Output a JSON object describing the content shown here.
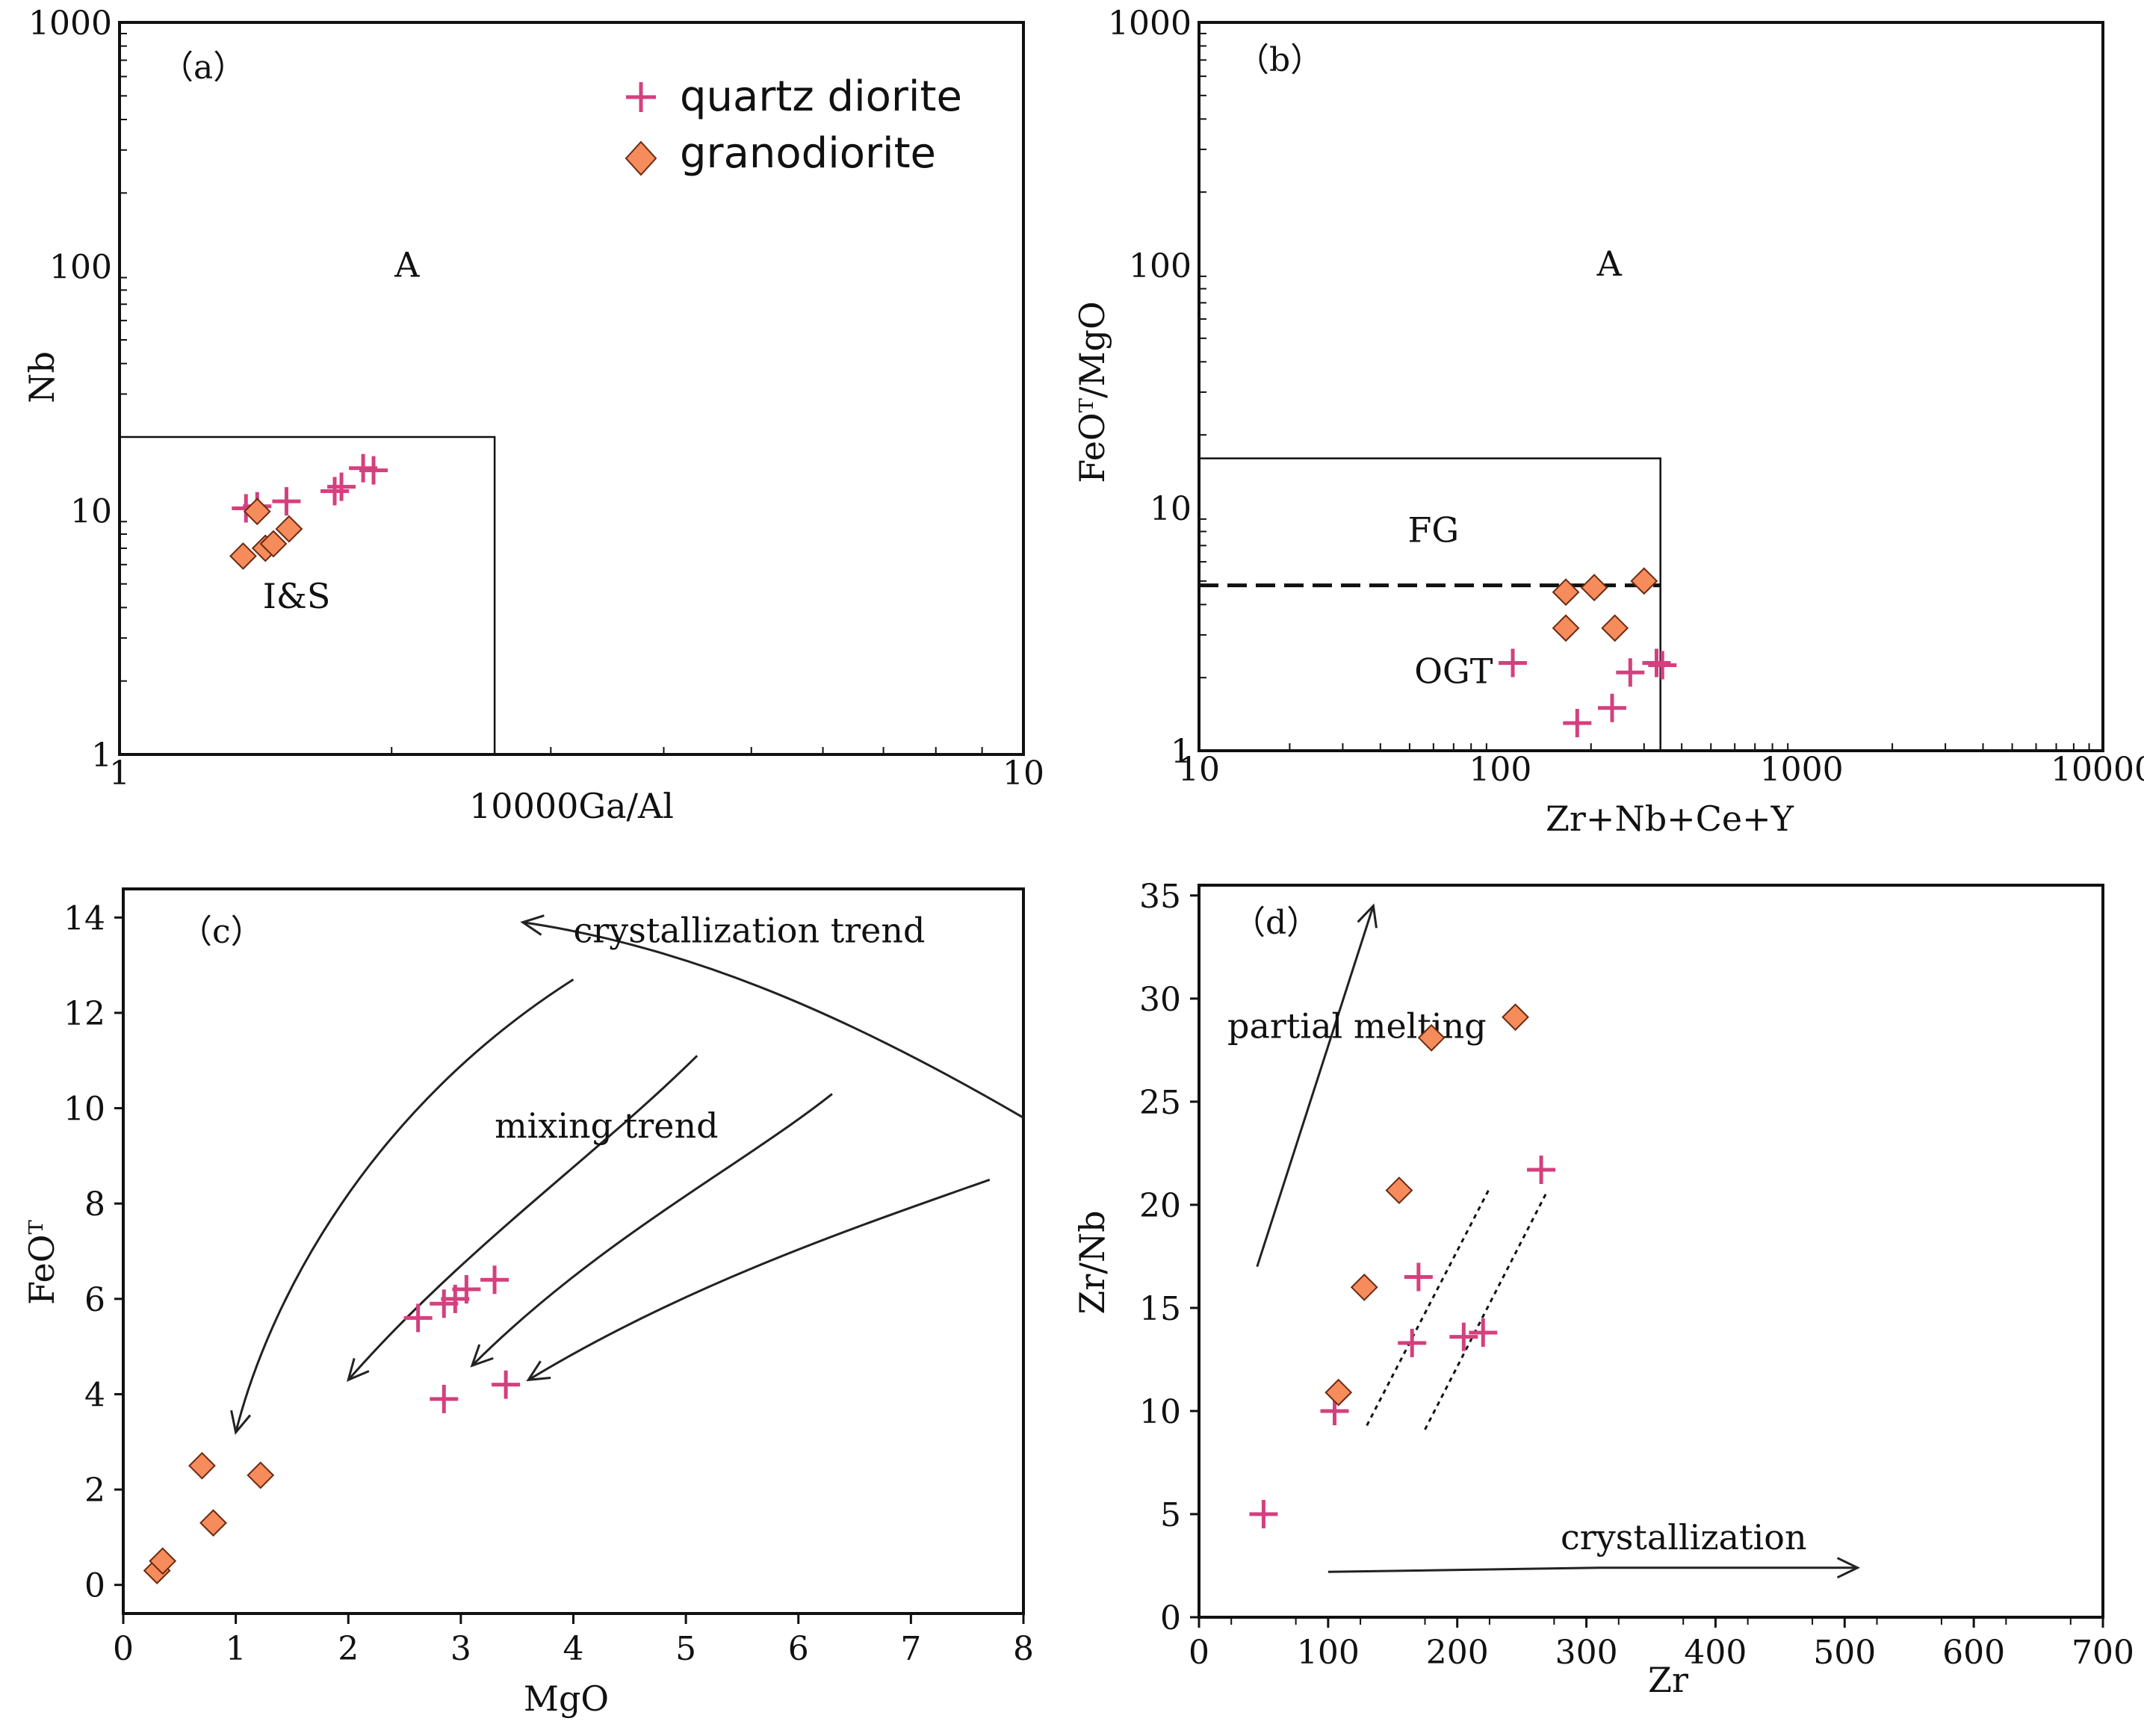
{
  "legend": {
    "items": [
      {
        "label": "quartz diorite",
        "marker": "plus",
        "color": "#d4407e"
      },
      {
        "label": "granodiorite",
        "marker": "diamond",
        "color": "#f68b5c"
      }
    ]
  },
  "chart_data": [
    {
      "panel_label": "（a）",
      "type": "scatter",
      "xlabel": "10000Ga/Al",
      "ylabel": "Nb",
      "xscale": "log",
      "yscale": "log",
      "xlim": [
        1,
        10
      ],
      "ylim": [
        1,
        1000
      ],
      "x_ticks": [
        {
          "v": 1,
          "label": "1"
        },
        {
          "v": 10,
          "label": "10"
        }
      ],
      "y_ticks": [
        {
          "v": 1,
          "label": "1"
        },
        {
          "v": 10,
          "label": "10"
        },
        {
          "v": 100,
          "label": "100"
        },
        {
          "v": 1000,
          "label": "1000"
        }
      ],
      "regions": [
        {
          "label": "A",
          "x": 2.08,
          "y": 100
        },
        {
          "label": "I&S",
          "x": 1.57,
          "y": 4.4
        }
      ],
      "boundaries": [
        {
          "style": "solid",
          "points": [
            [
              1,
              20
            ],
            [
              2.6,
              20
            ],
            [
              2.6,
              1
            ]
          ]
        }
      ],
      "series": [
        {
          "name": "quartz diorite",
          "marker": "plus",
          "points": [
            [
              1.38,
              10.2
            ],
            [
              1.42,
              10.4
            ],
            [
              1.53,
              10.9
            ],
            [
              1.73,
              12.0
            ],
            [
              1.76,
              12.5
            ],
            [
              1.86,
              14.9
            ],
            [
              1.91,
              14.6
            ]
          ]
        },
        {
          "name": "granodiorite",
          "marker": "diamond",
          "points": [
            [
              1.37,
              6.5
            ],
            [
              1.42,
              9.9
            ],
            [
              1.45,
              7.0
            ],
            [
              1.48,
              7.3
            ],
            [
              1.54,
              8.4
            ]
          ]
        }
      ]
    },
    {
      "panel_label": "（b）",
      "type": "scatter",
      "xlabel": "Zr+Nb+Ce+Y",
      "ylabel": "FeOᵀ/MgO",
      "xscale": "log",
      "yscale": "log",
      "xlim": [
        10,
        10000
      ],
      "ylim": [
        1,
        1000
      ],
      "x_ticks": [
        {
          "v": 10,
          "label": "10"
        },
        {
          "v": 100,
          "label": "100"
        },
        {
          "v": 1000,
          "label": "1000"
        },
        {
          "v": 10000,
          "label": "10000"
        }
      ],
      "y_ticks": [
        {
          "v": 1,
          "label": "1"
        },
        {
          "v": 10,
          "label": "10"
        },
        {
          "v": 100,
          "label": "100"
        },
        {
          "v": 1000,
          "label": "1000"
        }
      ],
      "regions": [
        {
          "label": "A",
          "x": 230,
          "y": 100
        },
        {
          "label": "FG",
          "x": 60,
          "y": 8
        },
        {
          "label": "OGT",
          "x": 70,
          "y": 2.1
        }
      ],
      "boundaries": [
        {
          "style": "solid",
          "points": [
            [
              10,
              16
            ],
            [
              340,
              16
            ],
            [
              340,
              1
            ]
          ]
        },
        {
          "style": "dashed",
          "points": [
            [
              10,
              4.8
            ],
            [
              340,
              4.8
            ]
          ]
        }
      ],
      "series": [
        {
          "name": "quartz diorite",
          "marker": "plus",
          "points": [
            [
              110,
              2.3
            ],
            [
              180,
              1.3
            ],
            [
              235,
              1.5
            ],
            [
              270,
              2.1
            ],
            [
              330,
              2.3
            ],
            [
              345,
              2.25
            ]
          ]
        },
        {
          "name": "granodiorite",
          "marker": "diamond",
          "points": [
            [
              165,
              4.5
            ],
            [
              205,
              4.7
            ],
            [
              165,
              3.2
            ],
            [
              240,
              3.2
            ],
            [
              300,
              5.0
            ]
          ]
        }
      ]
    },
    {
      "panel_label": "（c）",
      "type": "scatter",
      "xlabel": "MgO",
      "ylabel": "FeOᵀ",
      "xlim": [
        0,
        8
      ],
      "ylim": [
        -0.6,
        14.6
      ],
      "x_ticks": [
        {
          "v": 0,
          "label": "0"
        },
        {
          "v": 1,
          "label": "1"
        },
        {
          "v": 2,
          "label": "2"
        },
        {
          "v": 3,
          "label": "3"
        },
        {
          "v": 4,
          "label": "4"
        },
        {
          "v": 5,
          "label": "5"
        },
        {
          "v": 6,
          "label": "6"
        },
        {
          "v": 7,
          "label": "7"
        },
        {
          "v": 8,
          "label": "8"
        }
      ],
      "y_ticks": [
        {
          "v": 0,
          "label": "0"
        },
        {
          "v": 2,
          "label": "2"
        },
        {
          "v": 4,
          "label": "4"
        },
        {
          "v": 6,
          "label": "6"
        },
        {
          "v": 8,
          "label": "8"
        },
        {
          "v": 10,
          "label": "10"
        },
        {
          "v": 12,
          "label": "12"
        },
        {
          "v": 14,
          "label": "14"
        }
      ],
      "annotations": [
        {
          "text": "crystallization trend",
          "x": 4.0,
          "y": 13.7
        },
        {
          "text": "mixing  trend",
          "x": 3.3,
          "y": 9.6
        }
      ],
      "arrows": [
        {
          "kind": "curve",
          "points": [
            [
              8.0,
              9.8
            ],
            [
              6.4,
              12.0
            ],
            [
              5.0,
              13.4
            ],
            [
              3.55,
              13.9
            ]
          ]
        },
        {
          "kind": "curve",
          "points": [
            [
              4.0,
              12.7
            ],
            [
              2.2,
              10.0
            ],
            [
              1.3,
              6.0
            ],
            [
              1.0,
              3.2
            ]
          ]
        },
        {
          "kind": "curve",
          "points": [
            [
              5.1,
              11.1
            ],
            [
              4.2,
              9.0
            ],
            [
              3.0,
              7.0
            ],
            [
              2.0,
              4.3
            ]
          ]
        },
        {
          "kind": "curve",
          "points": [
            [
              6.3,
              10.3
            ],
            [
              5.5,
              8.8
            ],
            [
              4.2,
              7.2
            ],
            [
              3.1,
              4.6
            ]
          ]
        },
        {
          "kind": "curve",
          "points": [
            [
              7.7,
              8.5
            ],
            [
              6.5,
              7.5
            ],
            [
              5.0,
              6.3
            ],
            [
              3.6,
              4.3
            ]
          ]
        }
      ],
      "series": [
        {
          "name": "quartz diorite",
          "marker": "plus",
          "points": [
            [
              2.62,
              5.6
            ],
            [
              2.85,
              5.9
            ],
            [
              2.95,
              6.0
            ],
            [
              3.05,
              6.2
            ],
            [
              3.3,
              6.4
            ],
            [
              2.85,
              3.9
            ],
            [
              3.4,
              4.2
            ]
          ]
        },
        {
          "name": "granodiorite",
          "marker": "diamond",
          "points": [
            [
              0.3,
              0.3
            ],
            [
              0.35,
              0.5
            ],
            [
              0.7,
              2.5
            ],
            [
              0.8,
              1.3
            ],
            [
              1.22,
              2.3
            ]
          ]
        }
      ]
    },
    {
      "panel_label": "（d）",
      "type": "scatter",
      "xlabel": "Zr",
      "ylabel": "Zr/Nb",
      "xlim": [
        0,
        700
      ],
      "ylim": [
        0,
        35.5
      ],
      "x_ticks": [
        {
          "v": 0,
          "label": "0"
        },
        {
          "v": 100,
          "label": "100"
        },
        {
          "v": 200,
          "label": "200"
        },
        {
          "v": 300,
          "label": "300"
        },
        {
          "v": 400,
          "label": "400"
        },
        {
          "v": 500,
          "label": "500"
        },
        {
          "v": 600,
          "label": "600"
        },
        {
          "v": 700,
          "label": "700"
        }
      ],
      "y_ticks": [
        {
          "v": 0,
          "label": "0"
        },
        {
          "v": 5,
          "label": "5"
        },
        {
          "v": 10,
          "label": "10"
        },
        {
          "v": 15,
          "label": "15"
        },
        {
          "v": 20,
          "label": "20"
        },
        {
          "v": 25,
          "label": "25"
        },
        {
          "v": 30,
          "label": "30"
        },
        {
          "v": 35,
          "label": "35"
        }
      ],
      "annotations": [
        {
          "text": "partial melting",
          "x": 22,
          "y": 28.6
        },
        {
          "text": "crystallization",
          "x": 280,
          "y": 3.8
        }
      ],
      "arrows": [
        {
          "kind": "line",
          "points": [
            [
              45,
              17.0
            ],
            [
              135,
              34.5
            ]
          ]
        },
        {
          "kind": "line",
          "points": [
            [
              100,
              2.2
            ],
            [
              310,
              2.4
            ],
            [
              510,
              2.4
            ]
          ]
        }
      ],
      "guides": [
        {
          "style": "dotted",
          "points": [
            [
              130,
              9.3
            ],
            [
              225,
              20.8
            ]
          ]
        },
        {
          "style": "dotted",
          "points": [
            [
              175,
              9.1
            ],
            [
              270,
              20.7
            ]
          ]
        }
      ],
      "series": [
        {
          "name": "quartz diorite",
          "marker": "plus",
          "points": [
            [
              50,
              5.0
            ],
            [
              105,
              10.0
            ],
            [
              170,
              16.5
            ],
            [
              165,
              13.3
            ],
            [
              205,
              13.6
            ],
            [
              220,
              13.8
            ],
            [
              265,
              21.7
            ]
          ]
        },
        {
          "name": "granodiorite",
          "marker": "diamond",
          "points": [
            [
              108,
              10.9
            ],
            [
              128,
              16.0
            ],
            [
              155,
              20.7
            ],
            [
              180,
              28.1
            ],
            [
              245,
              29.1
            ]
          ]
        }
      ]
    }
  ]
}
